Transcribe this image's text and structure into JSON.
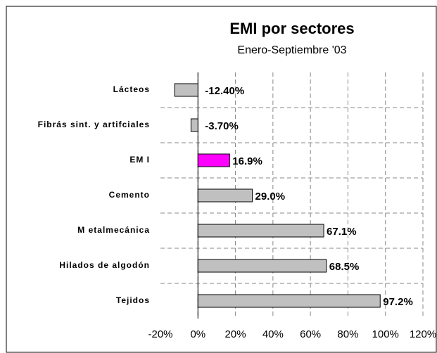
{
  "chart_data": {
    "type": "bar",
    "orientation": "horizontal",
    "title": "EMI por sectores",
    "subtitle": "Enero-Septiembre '03",
    "categories": [
      "Lácteos",
      "Fibrás sint. y artifciales",
      "EM I",
      "Cemento",
      "M etalmecánica",
      "Hilados de algodón",
      "Tejidos"
    ],
    "values": [
      -12.4,
      -3.7,
      16.9,
      29.0,
      67.1,
      68.5,
      97.2
    ],
    "value_labels": [
      "-12.40%",
      "-3.70%",
      "16.9%",
      "29.0%",
      "67.1%",
      "68.5%",
      "97.2%"
    ],
    "colors": [
      "#c0c0c0",
      "#c0c0c0",
      "#ff00ff",
      "#c0c0c0",
      "#c0c0c0",
      "#c0c0c0",
      "#c0c0c0"
    ],
    "xlim": [
      -20,
      120
    ],
    "xticks": [
      {
        "value": -20,
        "label": "-20%"
      },
      {
        "value": 0,
        "label": "0%"
      },
      {
        "value": 20,
        "label": "20%"
      },
      {
        "value": 40,
        "label": "40%"
      },
      {
        "value": 60,
        "label": "60%"
      },
      {
        "value": 80,
        "label": "80%"
      },
      {
        "value": 100,
        "label": "100%"
      },
      {
        "value": 120,
        "label": "120%"
      }
    ],
    "grid": true
  }
}
